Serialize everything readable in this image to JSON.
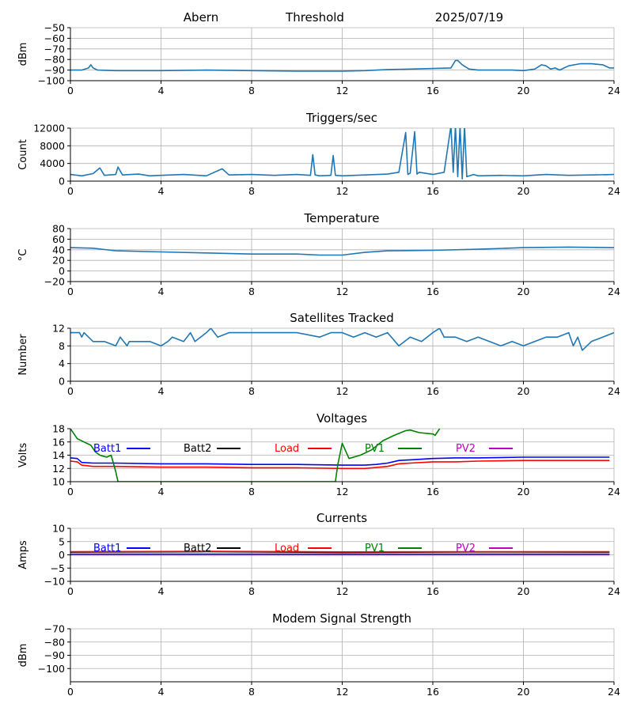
{
  "header": {
    "station": "Abern",
    "mode": "Threshold",
    "date": "2025/07/19"
  },
  "chart_data": [
    {
      "type": "line",
      "title": "",
      "ylabel": "dBm",
      "xlim": [
        0,
        24
      ],
      "ylim": [
        -100,
        -50
      ],
      "xticks": [
        0,
        4,
        8,
        12,
        16,
        20,
        24
      ],
      "yticks": [
        -50,
        -60,
        -70,
        -80,
        -90,
        -100
      ],
      "grid": true,
      "series": [
        {
          "color": "#1f77b4",
          "x": [
            0,
            0.5,
            0.8,
            0.9,
            1.0,
            1.2,
            2,
            4,
            6,
            8,
            10,
            12,
            13,
            14,
            15,
            16,
            16.8,
            17.0,
            17.1,
            17.3,
            17.6,
            18,
            19,
            19.5,
            20,
            20.5,
            20.8,
            21,
            21.2,
            21.4,
            21.6,
            21.8,
            22,
            22.5,
            23,
            23.5,
            23.8,
            24
          ],
          "values": [
            -90,
            -90,
            -88,
            -85,
            -88,
            -90,
            -90.5,
            -90.5,
            -90,
            -90.5,
            -91,
            -91,
            -90.5,
            -89.5,
            -89,
            -88.5,
            -88,
            -81,
            -81,
            -85,
            -89,
            -90,
            -90,
            -90,
            -90.5,
            -89,
            -85,
            -86,
            -89,
            -88,
            -90,
            -88,
            -86,
            -84,
            -84,
            -85,
            -88,
            -88
          ]
        }
      ]
    },
    {
      "type": "line",
      "title": "Triggers/sec",
      "ylabel": "Count",
      "xlim": [
        0,
        24
      ],
      "ylim": [
        0,
        12000
      ],
      "xticks": [
        0,
        4,
        8,
        12,
        16,
        20,
        24
      ],
      "yticks": [
        0,
        4000,
        8000,
        12000
      ],
      "grid": true,
      "series": [
        {
          "color": "#1f77b4",
          "x": [
            0,
            0.5,
            1,
            1.3,
            1.5,
            2,
            2.1,
            2.3,
            3,
            3.5,
            4,
            5,
            6,
            6.7,
            7,
            8,
            9,
            10,
            10.6,
            10.7,
            10.8,
            11,
            11.5,
            11.6,
            11.7,
            12,
            13,
            14,
            14.5,
            14.8,
            14.9,
            15,
            15.2,
            15.3,
            15.4,
            16,
            16.5,
            16.8,
            16.9,
            17.0,
            17.1,
            17.2,
            17.3,
            17.4,
            17.5,
            17.8,
            18,
            19,
            20,
            21,
            22,
            23,
            24
          ],
          "values": [
            1500,
            1200,
            1700,
            3000,
            1300,
            1500,
            3200,
            1400,
            1600,
            1200,
            1300,
            1500,
            1200,
            2800,
            1400,
            1500,
            1300,
            1500,
            1300,
            6000,
            1400,
            1200,
            1300,
            5800,
            1300,
            1200,
            1400,
            1600,
            2000,
            11000,
            1500,
            1800,
            11200,
            1600,
            2000,
            1500,
            2000,
            12500,
            2000,
            12500,
            1000,
            12500,
            500,
            12500,
            1000,
            1500,
            1200,
            1300,
            1200,
            1500,
            1300,
            1400,
            1500
          ]
        }
      ]
    },
    {
      "type": "line",
      "title": "Temperature",
      "ylabel": "°C",
      "xlim": [
        0,
        24
      ],
      "ylim": [
        -20,
        80
      ],
      "xticks": [
        0,
        4,
        8,
        12,
        16,
        20,
        24
      ],
      "yticks": [
        -20,
        0,
        20,
        40,
        60,
        80
      ],
      "grid": true,
      "series": [
        {
          "color": "#1f77b4",
          "x": [
            0,
            1,
            2,
            4,
            6,
            8,
            10,
            11,
            12,
            13,
            14,
            16,
            18,
            20,
            22,
            24
          ],
          "values": [
            44,
            43,
            38,
            36,
            34,
            32,
            32,
            30,
            30,
            35,
            38,
            39,
            41,
            44,
            45,
            44
          ]
        }
      ]
    },
    {
      "type": "line",
      "title": "Satellites Tracked",
      "ylabel": "Number",
      "xlim": [
        0,
        24
      ],
      "ylim": [
        0,
        12
      ],
      "xticks": [
        0,
        4,
        8,
        12,
        16,
        20,
        24
      ],
      "yticks": [
        0,
        4,
        8,
        12
      ],
      "grid": true,
      "series": [
        {
          "color": "#1f77b4",
          "x": [
            0,
            0.4,
            0.5,
            0.6,
            1,
            1.5,
            2,
            2.2,
            2.5,
            2.6,
            3,
            3.5,
            4,
            4.3,
            4.5,
            5,
            5.3,
            5.5,
            6,
            6.2,
            6.5,
            7,
            8,
            9,
            10,
            11,
            11.5,
            12,
            12.5,
            13,
            13.5,
            14,
            14.5,
            15,
            15.5,
            16,
            16.3,
            16.5,
            17,
            17.5,
            18,
            18.5,
            19,
            19.5,
            20,
            20.5,
            21,
            21.5,
            22,
            22.2,
            22.4,
            22.6,
            23,
            23.5,
            24
          ],
          "values": [
            11,
            11,
            10,
            11,
            9,
            9,
            8,
            10,
            8,
            9,
            9,
            9,
            8,
            9,
            10,
            9,
            11,
            9,
            11,
            12,
            10,
            11,
            11,
            11,
            11,
            10,
            11,
            11,
            10,
            11,
            10,
            11,
            8,
            10,
            9,
            11,
            12,
            10,
            10,
            9,
            10,
            9,
            8,
            9,
            8,
            9,
            10,
            10,
            11,
            8,
            10,
            7,
            9,
            10,
            11
          ]
        }
      ]
    },
    {
      "type": "line",
      "title": "Voltages",
      "ylabel": "Volts",
      "xlim": [
        0,
        24
      ],
      "ylim": [
        10,
        18
      ],
      "xticks": [
        0,
        4,
        8,
        12,
        16,
        20,
        24
      ],
      "yticks": [
        10,
        12,
        14,
        16,
        18
      ],
      "grid": true,
      "legend": [
        "Batt1",
        "Batt2",
        "Load",
        "PV1",
        "PV2"
      ],
      "legend_placement": "top",
      "series": [
        {
          "name": "Batt1",
          "color": "#0000ff",
          "x": [
            0,
            0.3,
            0.5,
            1,
            2,
            4,
            6,
            8,
            10,
            12,
            13,
            13.5,
            14,
            14.5,
            15,
            16,
            17,
            18,
            20,
            22,
            23.8
          ],
          "values": [
            13.6,
            13.5,
            12.9,
            12.8,
            12.8,
            12.7,
            12.7,
            12.6,
            12.6,
            12.5,
            12.5,
            12.6,
            12.8,
            13.2,
            13.3,
            13.5,
            13.6,
            13.6,
            13.7,
            13.7,
            13.7
          ]
        },
        {
          "name": "Batt2",
          "color": "#000000",
          "x": [],
          "values": []
        },
        {
          "name": "Load",
          "color": "#ff0000",
          "x": [
            0,
            0.3,
            0.5,
            1,
            2,
            4,
            6,
            8,
            10,
            12,
            13,
            14,
            14.5,
            15,
            16,
            17,
            18,
            20,
            22,
            23.8
          ],
          "values": [
            13.1,
            13.0,
            12.5,
            12.3,
            12.3,
            12.2,
            12.2,
            12.1,
            12.1,
            12.0,
            12.0,
            12.3,
            12.7,
            12.8,
            13.0,
            13.0,
            13.1,
            13.2,
            13.2,
            13.2
          ]
        },
        {
          "name": "PV1",
          "color": "#008000",
          "x": [
            0,
            0.3,
            0.6,
            0.9,
            1.1,
            1.3,
            1.6,
            1.8,
            2.0,
            2.1,
            11.7,
            11.8,
            12.0,
            12.3,
            12.8,
            13.3,
            13.8,
            14.3,
            14.8,
            15.0,
            15.4,
            16.0,
            16.1,
            16.3
          ],
          "values": [
            18,
            16.5,
            16.0,
            15.5,
            14.5,
            14.0,
            13.7,
            14.0,
            11.5,
            10,
            10,
            12.5,
            15.8,
            13.5,
            14.0,
            14.8,
            16.2,
            17.0,
            17.7,
            17.8,
            17.4,
            17.2,
            17.0,
            18
          ]
        },
        {
          "name": "PV2",
          "color": "#bf00bf",
          "x": [],
          "values": []
        }
      ]
    },
    {
      "type": "line",
      "title": "Currents",
      "ylabel": "Amps",
      "xlim": [
        0,
        24
      ],
      "ylim": [
        -10,
        10
      ],
      "xticks": [
        0,
        4,
        8,
        12,
        16,
        20,
        24
      ],
      "yticks": [
        -10,
        -5,
        0,
        5,
        10
      ],
      "grid": true,
      "legend": [
        "Batt1",
        "Batt2",
        "Load",
        "PV1",
        "PV2"
      ],
      "legend_placement": "top",
      "series": [
        {
          "name": "Batt1",
          "color": "#0000ff",
          "x": [
            0,
            23.8
          ],
          "values": [
            0.3,
            0.3
          ]
        },
        {
          "name": "Batt2",
          "color": "#000000",
          "x": [
            0,
            6,
            12,
            18,
            23.8
          ],
          "values": [
            1.0,
            1.2,
            0.9,
            1.1,
            1.0
          ]
        },
        {
          "name": "Load",
          "color": "#ff0000",
          "x": [
            0,
            6,
            12,
            18,
            23.8
          ],
          "values": [
            1.2,
            1.3,
            1.1,
            1.2,
            1.2
          ]
        },
        {
          "name": "PV1",
          "color": "#008000",
          "x": [
            0,
            23.8
          ],
          "values": [
            0.1,
            0.1
          ]
        },
        {
          "name": "PV2",
          "color": "#bf00bf",
          "x": [
            0,
            23.8
          ],
          "values": [
            0.0,
            0.0
          ]
        }
      ]
    },
    {
      "type": "line",
      "title": "Modem Signal Strength",
      "ylabel": "dBm",
      "xlim": [
        0,
        24
      ],
      "ylim": [
        -110,
        -70
      ],
      "xticks": [
        0,
        4,
        8,
        12,
        16,
        20,
        24
      ],
      "yticks": [
        -70,
        -80,
        -90,
        -100
      ],
      "grid": true,
      "series": []
    }
  ]
}
